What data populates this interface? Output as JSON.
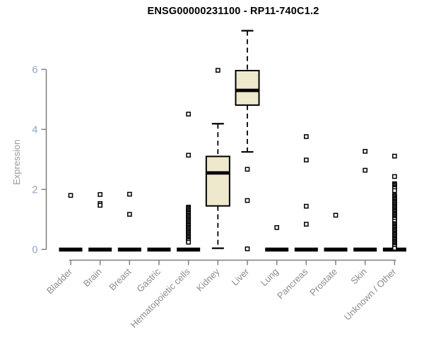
{
  "window": {
    "background": "#ffffff"
  },
  "chart_data": {
    "type": "boxplot",
    "title": "ENSG00000231100 - RP11-740C1.2",
    "ylabel": "Expression",
    "xlabel": "",
    "ylim": [
      0,
      7.5
    ],
    "yticks": [
      0,
      2,
      4,
      6
    ],
    "grid": false,
    "legend": false,
    "categories": [
      "Bladder",
      "Brain",
      "Breast",
      "Gastric",
      "Hematopoietic cells",
      "Kidney",
      "Liver",
      "Lung",
      "Pancreas",
      "Prostate",
      "Skin",
      "Unknown / Other"
    ],
    "boxes": [
      {
        "category": "Bladder",
        "q1": 0,
        "median": 0,
        "q3": 0,
        "whisker_low": 0,
        "whisker_high": 0,
        "outliers": [
          1.8
        ]
      },
      {
        "category": "Brain",
        "q1": 0,
        "median": 0,
        "q3": 0,
        "whisker_low": 0,
        "whisker_high": 0,
        "outliers": [
          1.83,
          1.53,
          1.47
        ]
      },
      {
        "category": "Breast",
        "q1": 0,
        "median": 0,
        "q3": 0,
        "whisker_low": 0,
        "whisker_high": 0,
        "outliers": [
          1.84,
          1.17
        ]
      },
      {
        "category": "Gastric",
        "q1": 0,
        "median": 0,
        "q3": 0,
        "whisker_low": 0,
        "whisker_high": 0,
        "outliers": []
      },
      {
        "category": "Hematopoietic cells",
        "q1": 0,
        "median": 0,
        "q3": 0,
        "whisker_low": 0,
        "whisker_high": 0,
        "outliers": [
          4.51,
          3.14,
          1.41,
          1.37,
          1.33,
          1.29,
          1.25,
          1.21,
          1.17,
          1.13,
          1.09,
          1.05,
          1.01,
          0.97,
          0.93,
          0.89,
          0.85,
          0.81,
          0.77,
          0.73,
          0.69,
          0.65,
          0.61,
          0.57,
          0.53,
          0.49,
          0.45,
          0.41,
          0.37,
          0.33,
          0.29,
          0.24
        ]
      },
      {
        "category": "Kidney",
        "q1": 1.45,
        "median": 2.55,
        "q3": 3.1,
        "whisker_low": 0.04,
        "whisker_high": 4.19,
        "outliers": [
          5.97
        ]
      },
      {
        "category": "Liver",
        "q1": 4.81,
        "median": 5.3,
        "q3": 5.96,
        "whisker_low": 3.25,
        "whisker_high": 7.29,
        "outliers": [
          2.67,
          1.63,
          0.02
        ]
      },
      {
        "category": "Lung",
        "q1": 0,
        "median": 0,
        "q3": 0,
        "whisker_low": 0,
        "whisker_high": 0,
        "outliers": [
          0.73
        ]
      },
      {
        "category": "Pancreas",
        "q1": 0,
        "median": 0,
        "q3": 0,
        "whisker_low": 0,
        "whisker_high": 0,
        "outliers": [
          3.76,
          2.98,
          1.44,
          0.84
        ]
      },
      {
        "category": "Prostate",
        "q1": 0,
        "median": 0,
        "q3": 0,
        "whisker_low": 0,
        "whisker_high": 0,
        "outliers": [
          1.14
        ]
      },
      {
        "category": "Skin",
        "q1": 0,
        "median": 0,
        "q3": 0,
        "whisker_low": 0,
        "whisker_high": 0,
        "outliers": [
          3.27,
          2.64
        ]
      },
      {
        "category": "Unknown / Other",
        "q1": 0,
        "median": 0,
        "q3": 0,
        "whisker_low": 0,
        "whisker_high": 0,
        "outliers": [
          3.11,
          2.43,
          2.19,
          2.15,
          2.11,
          2.07,
          2.03,
          1.96,
          1.8,
          1.76,
          1.72,
          1.68,
          1.64,
          1.6,
          1.56,
          1.52,
          1.48,
          1.44,
          1.4,
          1.36,
          1.32,
          1.28,
          1.24,
          1.2,
          1.16,
          1.12,
          1.08,
          1.04,
          1.0,
          0.94,
          0.86,
          0.82,
          0.78,
          0.74,
          0.7,
          0.66,
          0.62,
          0.58,
          0.54,
          0.5,
          0.46,
          0.42,
          0.38,
          0.34,
          0.3,
          0.26,
          0.22,
          0.18,
          0.14,
          0.1,
          0.04
        ]
      }
    ],
    "colors": {
      "box_fill": "#EEE8CD",
      "box_border": "#000000",
      "median": "#000000",
      "outlier": "#000000",
      "axis": "#7f7f7f",
      "y_tick_label": "#8fa3c2",
      "x_tick_label": "#8c8c8c",
      "ylabel_color": "#999999",
      "title_color": "#000000"
    }
  }
}
